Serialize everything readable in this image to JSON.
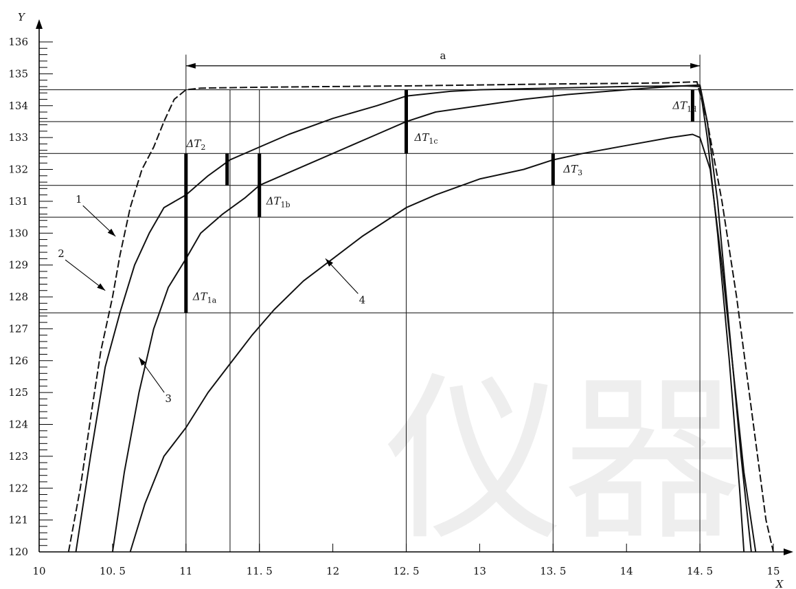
{
  "chart_data": {
    "type": "line",
    "xlabel": "X",
    "ylabel": "Y",
    "xlim": [
      10,
      15.1
    ],
    "ylim": [
      120,
      136.5
    ],
    "x_ticks": [
      10,
      10.5,
      11,
      11.5,
      12,
      12.5,
      13,
      13.5,
      14,
      14.5,
      15
    ],
    "x_tick_labels": [
      "10",
      "10. 5",
      "11",
      "11. 5",
      "12",
      "12. 5",
      "13",
      "13. 5",
      "14",
      "14. 5",
      "15"
    ],
    "y_ticks": [
      120,
      121,
      122,
      123,
      124,
      125,
      126,
      127,
      128,
      129,
      130,
      131,
      132,
      133,
      134,
      135,
      136
    ],
    "y_tick_labels": [
      "120",
      "121",
      "122",
      "123",
      "124",
      "125",
      "126",
      "127",
      "128",
      "129",
      "130",
      "131",
      "132",
      "133",
      "134",
      "135",
      "136"
    ],
    "watermark": "仪器",
    "series": [
      {
        "name": "1",
        "style": "dashed",
        "points": [
          [
            10.2,
            120
          ],
          [
            10.28,
            122
          ],
          [
            10.36,
            124.5
          ],
          [
            10.42,
            126.3
          ],
          [
            10.5,
            128
          ],
          [
            10.55,
            129.3
          ],
          [
            10.62,
            130.8
          ],
          [
            10.7,
            132
          ],
          [
            10.78,
            132.7
          ],
          [
            10.85,
            133.5
          ],
          [
            10.92,
            134.2
          ],
          [
            11.0,
            134.5
          ],
          [
            11.1,
            134.55
          ],
          [
            11.5,
            134.58
          ],
          [
            12,
            134.6
          ],
          [
            12.5,
            134.62
          ],
          [
            13,
            134.65
          ],
          [
            13.5,
            134.68
          ],
          [
            14,
            134.7
          ],
          [
            14.3,
            134.72
          ],
          [
            14.48,
            134.75
          ],
          [
            14.55,
            133.5
          ],
          [
            14.65,
            131
          ],
          [
            14.75,
            128
          ],
          [
            14.85,
            124.5
          ],
          [
            14.95,
            121
          ],
          [
            15.0,
            120
          ]
        ]
      },
      {
        "name": "2",
        "style": "solid",
        "points": [
          [
            10.25,
            120
          ],
          [
            10.35,
            123
          ],
          [
            10.45,
            125.8
          ],
          [
            10.55,
            127.5
          ],
          [
            10.65,
            129
          ],
          [
            10.75,
            130
          ],
          [
            10.85,
            130.8
          ],
          [
            11.0,
            131.2
          ],
          [
            11.15,
            131.8
          ],
          [
            11.3,
            132.3
          ],
          [
            11.5,
            132.7
          ],
          [
            11.7,
            133.1
          ],
          [
            12.0,
            133.6
          ],
          [
            12.3,
            134.0
          ],
          [
            12.5,
            134.3
          ],
          [
            12.8,
            134.45
          ],
          [
            13.0,
            134.5
          ],
          [
            13.5,
            134.55
          ],
          [
            14,
            134.6
          ],
          [
            14.4,
            134.62
          ],
          [
            14.5,
            134.6
          ],
          [
            14.55,
            133
          ],
          [
            14.62,
            130
          ],
          [
            14.7,
            126
          ],
          [
            14.77,
            122
          ],
          [
            14.8,
            120
          ]
        ]
      },
      {
        "name": "3",
        "style": "solid",
        "points": [
          [
            10.5,
            120
          ],
          [
            10.58,
            122.5
          ],
          [
            10.68,
            125
          ],
          [
            10.78,
            127
          ],
          [
            10.88,
            128.3
          ],
          [
            11.0,
            129.2
          ],
          [
            11.1,
            130
          ],
          [
            11.25,
            130.6
          ],
          [
            11.4,
            131.1
          ],
          [
            11.5,
            131.5
          ],
          [
            11.7,
            131.9
          ],
          [
            12.0,
            132.5
          ],
          [
            12.3,
            133.1
          ],
          [
            12.5,
            133.5
          ],
          [
            12.7,
            133.8
          ],
          [
            13.0,
            134.0
          ],
          [
            13.3,
            134.2
          ],
          [
            13.6,
            134.35
          ],
          [
            14.0,
            134.5
          ],
          [
            14.3,
            134.6
          ],
          [
            14.5,
            134.65
          ],
          [
            14.55,
            133.5
          ],
          [
            14.62,
            131
          ],
          [
            14.7,
            127
          ],
          [
            14.78,
            123
          ],
          [
            14.85,
            120
          ]
        ]
      },
      {
        "name": "4",
        "style": "solid",
        "points": [
          [
            10.62,
            120
          ],
          [
            10.72,
            121.5
          ],
          [
            10.85,
            123
          ],
          [
            11.0,
            123.9
          ],
          [
            11.15,
            125
          ],
          [
            11.3,
            125.9
          ],
          [
            11.45,
            126.8
          ],
          [
            11.6,
            127.6
          ],
          [
            11.8,
            128.5
          ],
          [
            12.0,
            129.2
          ],
          [
            12.2,
            129.9
          ],
          [
            12.5,
            130.8
          ],
          [
            12.7,
            131.2
          ],
          [
            13.0,
            131.7
          ],
          [
            13.3,
            132.0
          ],
          [
            13.5,
            132.3
          ],
          [
            13.7,
            132.5
          ],
          [
            14.0,
            132.75
          ],
          [
            14.3,
            133.0
          ],
          [
            14.45,
            133.1
          ],
          [
            14.5,
            133.0
          ],
          [
            14.57,
            132
          ],
          [
            14.65,
            129
          ],
          [
            14.72,
            126
          ],
          [
            14.8,
            122.5
          ],
          [
            14.88,
            120
          ]
        ]
      }
    ],
    "reference_lines_y": [
      134.5,
      133.5,
      132.5,
      131.5,
      130.5,
      127.5
    ],
    "reference_lines_x": [
      11,
      11.3,
      11.5,
      12.5,
      13.5,
      14.5
    ],
    "markers": [
      {
        "label_main": "ΔT",
        "label_sub": "1a",
        "x": 11.0,
        "y_from": 127.5,
        "y_to": 132.5
      },
      {
        "label_main": "ΔT",
        "label_sub": "2",
        "x": 11.28,
        "y_from": 131.5,
        "y_to": 132.5
      },
      {
        "label_main": "ΔT",
        "label_sub": "1b",
        "x": 11.5,
        "y_from": 130.5,
        "y_to": 132.5
      },
      {
        "label_main": "ΔT",
        "label_sub": "1c",
        "x": 12.5,
        "y_from": 132.5,
        "y_to": 134.5
      },
      {
        "label_main": "ΔT",
        "label_sub": "3",
        "x": 13.5,
        "y_from": 131.5,
        "y_to": 132.5
      },
      {
        "label_main": "ΔT",
        "label_sub": "1d",
        "x": 14.45,
        "y_from": 133.5,
        "y_to": 134.5
      }
    ],
    "span_annotation": {
      "label": "a",
      "x_from": 11,
      "x_to": 14.5,
      "y": 135.25
    },
    "callouts": [
      {
        "label": "1",
        "text_at": [
          10.27,
          130.95
        ],
        "arrow_to": [
          10.52,
          129.9
        ]
      },
      {
        "label": "2",
        "text_at": [
          10.15,
          129.25
        ],
        "arrow_to": [
          10.45,
          128.2
        ]
      },
      {
        "label": "3",
        "text_at": [
          10.88,
          124.7
        ],
        "arrow_to": [
          10.68,
          126.1
        ]
      },
      {
        "label": "4",
        "text_at": [
          12.2,
          127.8
        ],
        "arrow_to": [
          11.95,
          129.2
        ]
      }
    ]
  }
}
